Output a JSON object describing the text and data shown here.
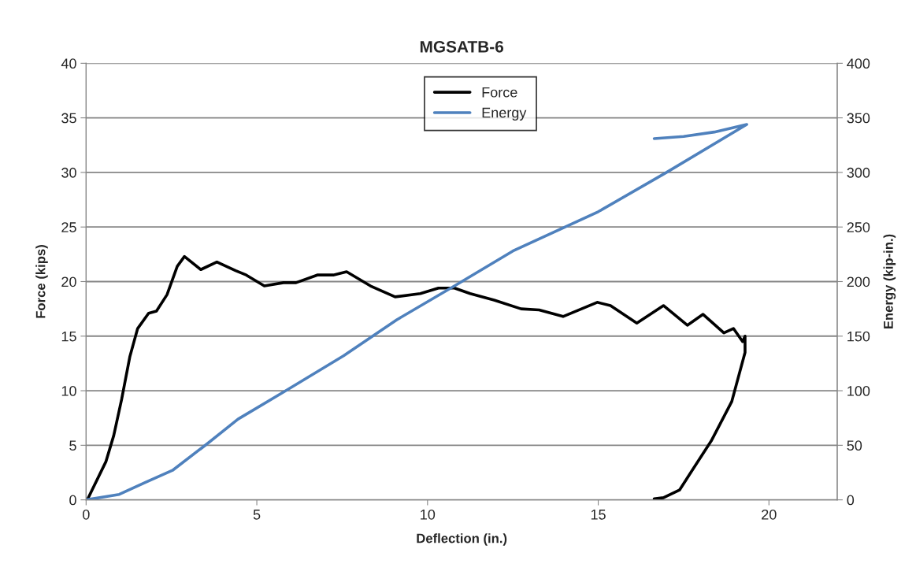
{
  "chart_data": {
    "type": "line",
    "title": "MGSATB-6",
    "xlabel": "Deflection (in.)",
    "ylabel": "Force (kips)",
    "y2label": "Energy (kip-in.)",
    "xlim": [
      0,
      22
    ],
    "xticks": [
      0,
      5,
      10,
      15,
      20
    ],
    "ylim": [
      0,
      40
    ],
    "yticks": [
      0,
      5,
      10,
      15,
      20,
      25,
      30,
      35,
      40
    ],
    "y2lim": [
      0,
      400
    ],
    "y2ticks": [
      0,
      50,
      100,
      150,
      200,
      250,
      300,
      350,
      400
    ],
    "grid": "y",
    "legend": "top",
    "marker": "none",
    "line_style": "solid",
    "series": [
      {
        "name": "Force",
        "color": "#000000",
        "x": [
          0.05,
          0.58,
          0.81,
          1.04,
          1.28,
          1.51,
          1.83,
          2.06,
          2.37,
          2.67,
          2.88,
          3.36,
          3.83,
          4.38,
          4.69,
          5.22,
          5.78,
          6.15,
          6.77,
          7.24,
          7.63,
          8.33,
          9.05,
          9.79,
          10.32,
          10.79,
          11.25,
          11.95,
          12.74,
          13.27,
          13.97,
          14.97,
          15.36,
          16.13,
          16.91,
          17.61,
          18.07,
          18.68,
          18.96,
          19.23,
          19.3,
          19.3,
          18.91,
          18.31,
          17.75,
          17.38,
          16.91,
          16.64
        ],
        "values": [
          0.1,
          3.5,
          5.9,
          9.2,
          13.1,
          15.7,
          17.1,
          17.3,
          18.8,
          21.4,
          22.3,
          21.1,
          21.8,
          21.0,
          20.6,
          19.6,
          19.9,
          19.9,
          20.6,
          20.6,
          20.9,
          19.6,
          18.6,
          18.9,
          19.4,
          19.4,
          18.9,
          18.3,
          17.5,
          17.4,
          16.8,
          18.1,
          17.8,
          16.2,
          17.8,
          16.0,
          17.0,
          15.3,
          15.7,
          14.5,
          15.0,
          13.5,
          9.0,
          5.4,
          2.7,
          0.9,
          0.2,
          0.1
        ]
      },
      {
        "name": "Energy",
        "color": "#4f81bd",
        "axis": "y2",
        "x": [
          0,
          0.97,
          1.74,
          2.53,
          3.53,
          4.45,
          5.85,
          7.54,
          9.1,
          10.79,
          12.5,
          15,
          17,
          19.35,
          18.4,
          17.5,
          16.64
        ],
        "values": [
          0,
          5,
          16,
          27,
          51,
          74,
          100,
          132,
          165,
          196,
          228,
          264,
          300,
          344,
          337,
          333,
          331
        ]
      }
    ]
  }
}
